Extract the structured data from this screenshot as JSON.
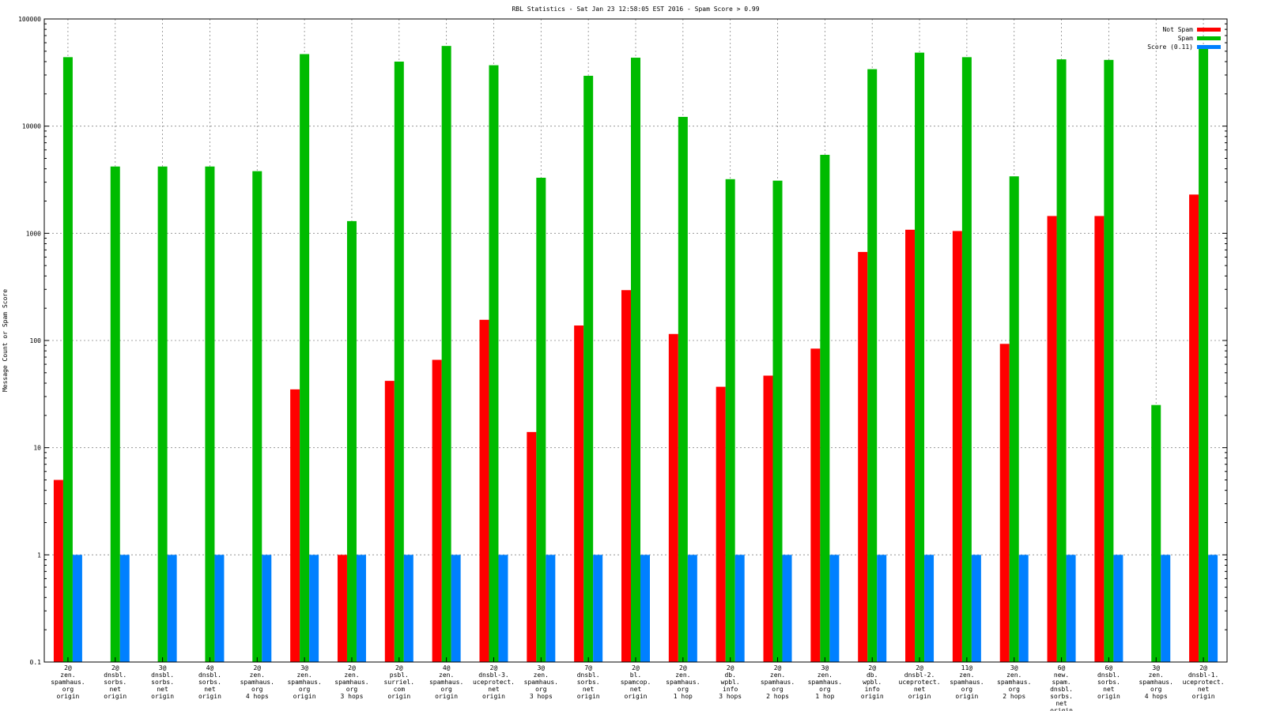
{
  "chart_data": {
    "type": "bar",
    "title": "RBL Statistics - Sat Jan 23 12:58:05 EST 2016 - Spam Score > 0.99",
    "ylabel": "Message Count or Spam Score",
    "xlabel": "",
    "yscale": "log",
    "ylim": [
      0.1,
      100000
    ],
    "yticks": [
      "0.1",
      "1",
      "10",
      "100",
      "1000",
      "10000",
      "100000"
    ],
    "grid": true,
    "legend_position": "top-right",
    "categories": [
      [
        "2@",
        "zen.",
        "spamhaus.",
        "org",
        "origin"
      ],
      [
        "2@",
        "dnsbl.",
        "sorbs.",
        "net",
        "origin"
      ],
      [
        "3@",
        "dnsbl.",
        "sorbs.",
        "net",
        "origin"
      ],
      [
        "4@",
        "dnsbl.",
        "sorbs.",
        "net",
        "origin"
      ],
      [
        "2@",
        "zen.",
        "spamhaus.",
        "org",
        "4 hops"
      ],
      [
        "3@",
        "zen.",
        "spamhaus.",
        "org",
        "origin"
      ],
      [
        "2@",
        "zen.",
        "spamhaus.",
        "org",
        "3 hops"
      ],
      [
        "2@",
        "psbl.",
        "surriel.",
        "com",
        "origin"
      ],
      [
        "4@",
        "zen.",
        "spamhaus.",
        "org",
        "origin"
      ],
      [
        "2@",
        "dnsbl-3.",
        "uceprotect.",
        "net",
        "origin"
      ],
      [
        "3@",
        "zen.",
        "spamhaus.",
        "org",
        "3 hops"
      ],
      [
        "7@",
        "dnsbl.",
        "sorbs.",
        "net",
        "origin"
      ],
      [
        "2@",
        "bl.",
        "spamcop.",
        "net",
        "origin"
      ],
      [
        "2@",
        "zen.",
        "spamhaus.",
        "org",
        "1 hop"
      ],
      [
        "2@",
        "db.",
        "wpbl.",
        "info",
        "3 hops"
      ],
      [
        "2@",
        "zen.",
        "spamhaus.",
        "org",
        "2 hops"
      ],
      [
        "3@",
        "zen.",
        "spamhaus.",
        "org",
        "1 hop"
      ],
      [
        "2@",
        "db.",
        "wpbl.",
        "info",
        "origin"
      ],
      [
        "2@",
        "dnsbl-2.",
        "uceprotect.",
        "net",
        "origin"
      ],
      [
        "11@",
        "zen.",
        "spamhaus.",
        "org",
        "origin"
      ],
      [
        "3@",
        "zen.",
        "spamhaus.",
        "org",
        "2 hops"
      ],
      [
        "6@",
        "new.",
        "spam.",
        "dnsbl.",
        "sorbs.",
        "net",
        "origin"
      ],
      [
        "6@",
        "dnsbl.",
        "sorbs.",
        "net",
        "origin"
      ],
      [
        "3@",
        "zen.",
        "spamhaus.",
        "org",
        "4 hops"
      ],
      [
        "2@",
        "dnsbl-1.",
        "uceprotect.",
        "net",
        "origin"
      ]
    ],
    "series": [
      {
        "name": "Not Spam",
        "color": "#ff0000",
        "values": [
          5,
          null,
          null,
          null,
          null,
          35,
          1,
          42,
          66,
          156,
          14,
          138,
          295,
          115,
          37,
          47,
          84,
          670,
          1080,
          1050,
          93,
          1450,
          1450,
          null,
          2300
        ]
      },
      {
        "name": "Spam",
        "color": "#00bb00",
        "values": [
          44000,
          4200,
          4200,
          4200,
          3800,
          47000,
          1300,
          40000,
          56000,
          37000,
          3300,
          29500,
          43500,
          12200,
          3200,
          3100,
          5400,
          34000,
          48500,
          44000,
          3400,
          42000,
          41500,
          25,
          55000
        ]
      },
      {
        "name": "Score (0.11)",
        "color": "#0080ff",
        "values": [
          1,
          1,
          1,
          1,
          1,
          1,
          1,
          1,
          1,
          1,
          1,
          1,
          1,
          1,
          1,
          1,
          1,
          1,
          1,
          1,
          1,
          1,
          1,
          1,
          1
        ]
      }
    ]
  }
}
